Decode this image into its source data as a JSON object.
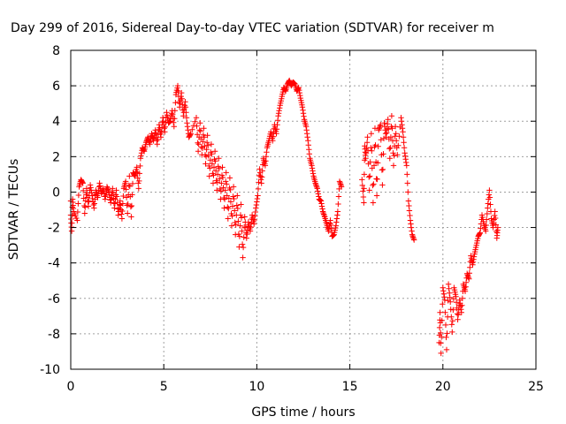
{
  "chart_data": {
    "type": "scatter",
    "title": "Day 299 of 2016, Sidereal Day-to-day VTEC variation (SDTVAR) for receiver m",
    "xlabel": "GPS time / hours",
    "ylabel": "SDTVAR / TECUs",
    "xlim": [
      0,
      25
    ],
    "ylim": [
      -10,
      8
    ],
    "xticks": [
      0,
      5,
      10,
      15,
      20,
      25
    ],
    "yticks": [
      -10,
      -8,
      -6,
      -4,
      -2,
      0,
      2,
      4,
      6,
      8
    ],
    "xtick_labels": [
      "0",
      "5",
      "10",
      "15",
      "20",
      "25"
    ],
    "ytick_labels": [
      "-10",
      "-8",
      "-6",
      "-4",
      "-2",
      "0",
      "2",
      "4",
      "6",
      "8"
    ],
    "grid": true,
    "marker": "+",
    "color": "#ff0000",
    "series": [
      {
        "name": "",
        "values": [
          [
            0.0,
            -0.5
          ],
          [
            0.0,
            -1.3
          ],
          [
            0.05,
            -2.2
          ],
          [
            0.1,
            -0.4
          ],
          [
            0.15,
            -1.1
          ],
          [
            0.35,
            -1.6
          ],
          [
            0.45,
            0.3
          ],
          [
            0.55,
            0.7
          ],
          [
            0.65,
            0.5
          ],
          [
            0.75,
            -1.2
          ],
          [
            0.85,
            0.2
          ],
          [
            0.95,
            -0.8
          ],
          [
            1.05,
            0.4
          ],
          [
            1.15,
            -0.2
          ],
          [
            1.25,
            -0.9
          ],
          [
            1.35,
            0.1
          ],
          [
            1.45,
            -0.3
          ],
          [
            1.55,
            0.5
          ],
          [
            1.65,
            -0.1
          ],
          [
            1.75,
            0.2
          ],
          [
            1.85,
            -0.4
          ],
          [
            1.95,
            0.3
          ],
          [
            2.05,
            0.0
          ],
          [
            2.15,
            -0.6
          ],
          [
            2.25,
            0.2
          ],
          [
            2.35,
            -0.9
          ],
          [
            2.45,
            0.1
          ],
          [
            2.55,
            -1.3
          ],
          [
            2.65,
            -0.5
          ],
          [
            2.75,
            -1.5
          ],
          [
            2.85,
            0.2
          ],
          [
            2.95,
            0.6
          ],
          [
            3.05,
            -1.2
          ],
          [
            3.15,
            0.9
          ],
          [
            3.25,
            -1.4
          ],
          [
            3.35,
            1.1
          ],
          [
            3.45,
            0.9
          ],
          [
            3.55,
            1.4
          ],
          [
            3.65,
            0.2
          ],
          [
            3.75,
            1.9
          ],
          [
            3.85,
            2.5
          ],
          [
            3.95,
            2.3
          ],
          [
            4.05,
            2.8
          ],
          [
            4.15,
            3.1
          ],
          [
            4.25,
            2.7
          ],
          [
            4.35,
            3.3
          ],
          [
            4.45,
            2.9
          ],
          [
            4.55,
            3.5
          ],
          [
            4.65,
            2.7
          ],
          [
            4.75,
            3.8
          ],
          [
            4.85,
            3.1
          ],
          [
            4.95,
            4.2
          ],
          [
            5.05,
            3.4
          ],
          [
            5.15,
            4.5
          ],
          [
            5.25,
            3.9
          ],
          [
            5.35,
            4.0
          ],
          [
            5.45,
            4.6
          ],
          [
            5.55,
            3.7
          ],
          [
            5.65,
            5.5
          ],
          [
            5.75,
            6.0
          ],
          [
            5.85,
            4.8
          ],
          [
            5.95,
            5.6
          ],
          [
            6.05,
            4.3
          ],
          [
            6.15,
            5.1
          ],
          [
            6.25,
            3.9
          ],
          [
            6.35,
            3.1
          ],
          [
            6.45,
            3.3
          ],
          [
            6.75,
            4.2
          ],
          [
            6.85,
            2.3
          ],
          [
            6.95,
            3.9
          ],
          [
            7.05,
            2.1
          ],
          [
            7.15,
            3.6
          ],
          [
            7.25,
            1.6
          ],
          [
            7.35,
            3.2
          ],
          [
            7.45,
            0.9
          ],
          [
            7.55,
            2.7
          ],
          [
            7.65,
            0.5
          ],
          [
            7.75,
            2.3
          ],
          [
            7.85,
            0.1
          ],
          [
            7.95,
            1.9
          ],
          [
            8.05,
            -0.4
          ],
          [
            8.15,
            1.4
          ],
          [
            8.25,
            -0.9
          ],
          [
            8.35,
            1.1
          ],
          [
            8.45,
            -1.5
          ],
          [
            8.55,
            0.8
          ],
          [
            8.65,
            -1.9
          ],
          [
            8.75,
            0.3
          ],
          [
            8.85,
            -2.4
          ],
          [
            8.95,
            -0.2
          ],
          [
            9.05,
            -3.1
          ],
          [
            9.15,
            -0.7
          ],
          [
            9.25,
            -3.7
          ],
          [
            9.35,
            -1.4
          ],
          [
            9.45,
            -2.6
          ],
          [
            9.55,
            -1.7
          ],
          [
            9.65,
            -2.2
          ],
          [
            9.75,
            -1.3
          ],
          [
            9.85,
            -1.8
          ],
          [
            9.95,
            -0.9
          ],
          [
            10.05,
            -0.2
          ],
          [
            10.15,
            1.3
          ],
          [
            10.25,
            0.5
          ],
          [
            10.35,
            1.9
          ],
          [
            10.45,
            1.5
          ],
          [
            10.55,
            2.5
          ],
          [
            10.65,
            2.9
          ],
          [
            10.75,
            3.4
          ],
          [
            10.85,
            2.9
          ],
          [
            10.95,
            3.8
          ],
          [
            11.05,
            3.3
          ],
          [
            11.15,
            4.3
          ],
          [
            11.25,
            4.9
          ],
          [
            11.35,
            5.4
          ],
          [
            11.45,
            5.9
          ],
          [
            11.55,
            5.7
          ],
          [
            11.65,
            6.1
          ],
          [
            11.75,
            6.3
          ],
          [
            11.85,
            6.0
          ],
          [
            11.95,
            6.2
          ],
          [
            12.05,
            6.1
          ],
          [
            12.15,
            5.7
          ],
          [
            12.25,
            5.9
          ],
          [
            12.35,
            5.3
          ],
          [
            12.45,
            4.8
          ],
          [
            12.55,
            4.1
          ],
          [
            12.65,
            3.7
          ],
          [
            12.75,
            2.9
          ],
          [
            12.85,
            1.9
          ],
          [
            12.95,
            1.5
          ],
          [
            13.05,
            0.9
          ],
          [
            13.15,
            0.5
          ],
          [
            13.25,
            0.2
          ],
          [
            13.35,
            -0.4
          ],
          [
            13.45,
            -0.5
          ],
          [
            13.55,
            -1.1
          ],
          [
            13.65,
            -1.4
          ],
          [
            13.75,
            -1.8
          ],
          [
            13.85,
            -2.2
          ],
          [
            13.95,
            -1.6
          ],
          [
            14.05,
            -2.5
          ],
          [
            14.15,
            -2.4
          ],
          [
            14.25,
            -1.9
          ],
          [
            14.35,
            -1.1
          ],
          [
            14.45,
            0.6
          ],
          [
            14.55,
            0.3
          ],
          [
            15.65,
            0.7
          ],
          [
            15.75,
            -0.6
          ],
          [
            15.8,
            2.6
          ],
          [
            15.85,
            1.9
          ],
          [
            15.95,
            3.1
          ],
          [
            16.05,
            0.1
          ],
          [
            16.15,
            3.3
          ],
          [
            16.25,
            -0.6
          ],
          [
            16.35,
            3.6
          ],
          [
            16.45,
            -0.2
          ],
          [
            16.55,
            3.5
          ],
          [
            16.65,
            3.8
          ],
          [
            16.75,
            0.4
          ],
          [
            16.85,
            3.9
          ],
          [
            16.95,
            3.1
          ],
          [
            17.05,
            4.1
          ],
          [
            17.15,
            1.9
          ],
          [
            17.25,
            4.3
          ],
          [
            17.35,
            1.5
          ],
          [
            17.45,
            3.7
          ],
          [
            17.55,
            2.1
          ],
          [
            17.75,
            4.2
          ],
          [
            17.85,
            3.4
          ],
          [
            17.95,
            2.2
          ],
          [
            18.05,
            1.5
          ],
          [
            18.15,
            -0.5
          ],
          [
            18.25,
            -1.6
          ],
          [
            18.35,
            -2.4
          ],
          [
            18.45,
            -2.7
          ],
          [
            19.8,
            -8.5
          ],
          [
            19.85,
            -6.8
          ],
          [
            19.9,
            -9.1
          ],
          [
            20.0,
            -5.4
          ],
          [
            20.1,
            -6.1
          ],
          [
            20.2,
            -8.9
          ],
          [
            20.3,
            -5.2
          ],
          [
            20.4,
            -6.2
          ],
          [
            20.5,
            -7.9
          ],
          [
            20.6,
            -5.4
          ],
          [
            20.7,
            -5.9
          ],
          [
            20.8,
            -7.2
          ],
          [
            20.9,
            -6.1
          ],
          [
            21.0,
            -6.8
          ],
          [
            21.1,
            -5.2
          ],
          [
            21.2,
            -5.6
          ],
          [
            21.3,
            -4.6
          ],
          [
            21.4,
            -4.9
          ],
          [
            21.5,
            -3.6
          ],
          [
            21.6,
            -4.1
          ],
          [
            21.7,
            -3.5
          ],
          [
            21.8,
            -3.0
          ],
          [
            21.9,
            -2.5
          ],
          [
            22.0,
            -2.3
          ],
          [
            22.1,
            -1.3
          ],
          [
            22.2,
            -1.8
          ],
          [
            22.3,
            -2.2
          ],
          [
            22.4,
            -0.9
          ],
          [
            22.5,
            0.1
          ],
          [
            22.6,
            -1.5
          ],
          [
            22.7,
            -2.0
          ],
          [
            22.8,
            -1.1
          ],
          [
            22.9,
            -2.6
          ],
          [
            22.95,
            -2.0
          ]
        ]
      }
    ]
  }
}
